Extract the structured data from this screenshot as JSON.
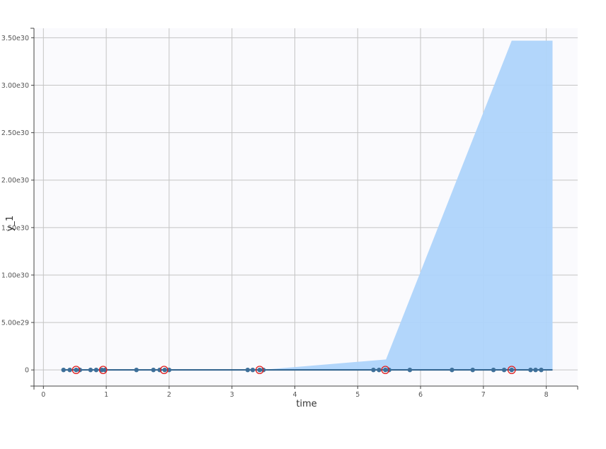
{
  "chart_data": {
    "type": "scatter",
    "xlabel": "time",
    "ylabel": "y_1",
    "xlim": [
      -0.15,
      8.5
    ],
    "ylim": [
      -1.7e+29,
      3.6e+30
    ],
    "x_ticks": [
      {
        "value": 0,
        "label": "0"
      },
      {
        "value": 1,
        "label": "1"
      },
      {
        "value": 2,
        "label": "2"
      },
      {
        "value": 3,
        "label": "3"
      },
      {
        "value": 4,
        "label": "4"
      },
      {
        "value": 5,
        "label": "5"
      },
      {
        "value": 6,
        "label": "6"
      },
      {
        "value": 7,
        "label": "7"
      },
      {
        "value": 8,
        "label": "8"
      }
    ],
    "y_ticks": [
      {
        "value": 0,
        "label": "0"
      },
      {
        "value": 5e+29,
        "label": "5.00e29"
      },
      {
        "value": 1e+30,
        "label": "1.00e30"
      },
      {
        "value": 1.5e+30,
        "label": "1.50e30"
      },
      {
        "value": 2e+30,
        "label": "2.00e30"
      },
      {
        "value": 2.5e+30,
        "label": "2.50e30"
      },
      {
        "value": 3e+30,
        "label": "3.00e30"
      },
      {
        "value": 3.5e+30,
        "label": "3.50e30"
      }
    ],
    "grid": true,
    "colors": {
      "plot_background": "#fafafd",
      "grid": "#c4c4c4",
      "band": "#aed4fb",
      "line": "#2c5f8a",
      "points": "#3d6f99",
      "highlight_ring": "#e02020"
    },
    "band": {
      "x": [
        3.45,
        5.45,
        7.45,
        8.1
      ],
      "upper": [
        0,
        1.1e+29,
        3.47e+30,
        3.47e+30
      ],
      "lower": [
        0,
        0,
        0,
        0
      ]
    },
    "line": {
      "x": [
        0.32,
        8.1
      ],
      "y": [
        0,
        0
      ]
    },
    "points": {
      "x": [
        0.32,
        0.42,
        0.52,
        0.58,
        0.75,
        0.84,
        0.93,
        0.98,
        1.48,
        1.75,
        1.85,
        1.93,
        2.0,
        3.25,
        3.33,
        3.44,
        3.5,
        5.25,
        5.34,
        5.44,
        5.5,
        5.83,
        6.5,
        6.83,
        7.16,
        7.33,
        7.45,
        7.75,
        7.83,
        7.92
      ],
      "y": [
        0,
        0,
        0,
        0,
        0,
        0,
        0,
        0,
        0,
        0,
        0,
        0,
        0,
        0,
        0,
        0,
        0,
        0,
        0,
        0,
        0,
        0,
        0,
        0,
        0,
        0,
        0,
        0,
        0,
        0
      ]
    },
    "highlighted": {
      "x": [
        0.52,
        0.95,
        1.92,
        3.44,
        5.44,
        7.45
      ],
      "y": [
        0,
        0,
        0,
        0,
        0,
        0
      ]
    }
  }
}
